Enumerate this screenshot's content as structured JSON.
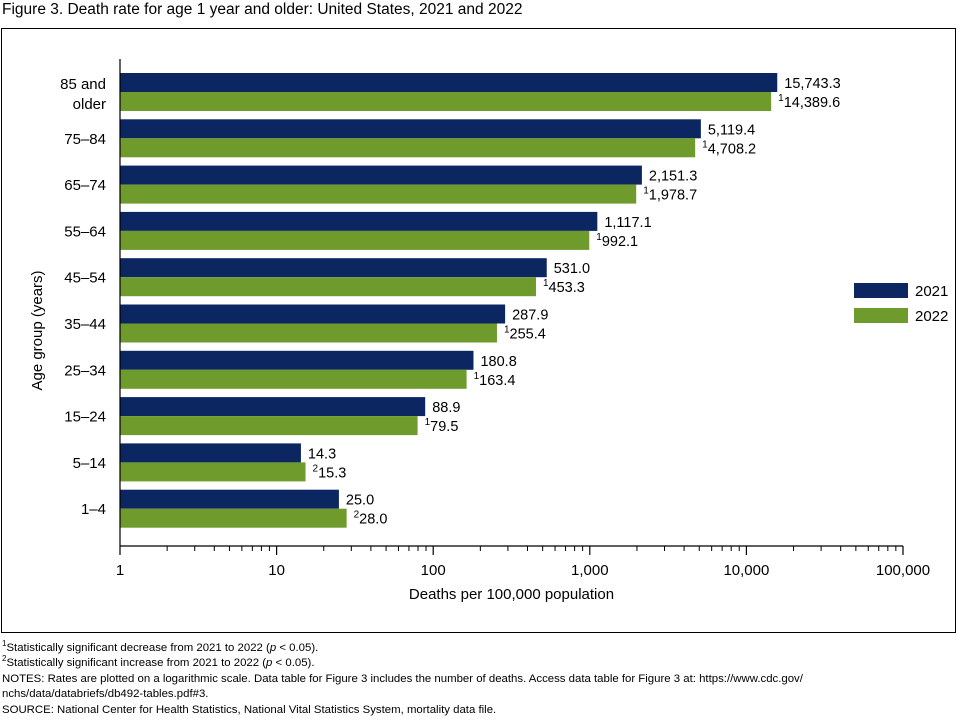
{
  "title": "Figure 3. Death rate for age 1 year and older: United States, 2021 and 2022",
  "chart_data": {
    "type": "bar",
    "orientation": "horizontal",
    "x_scale": "log",
    "xlim": [
      1,
      100000
    ],
    "xlabel": "Deaths per 100,000 population",
    "ylabel": "Age group (years)",
    "x_ticks": [
      "1",
      "10",
      "100",
      "1,000",
      "10,000",
      "100,000"
    ],
    "categories": [
      "85 and older",
      "75–84",
      "65–74",
      "55–64",
      "45–54",
      "35–44",
      "25–34",
      "15–24",
      "5–14",
      "1–4"
    ],
    "series": [
      {
        "name": "2021",
        "color": "#0b2660",
        "values": [
          15743.3,
          5119.4,
          2151.3,
          1117.1,
          531.0,
          287.9,
          180.8,
          88.9,
          14.3,
          25.0
        ],
        "labels": [
          "15,743.3",
          "5,119.4",
          "2,151.3",
          "1,117.1",
          "531.0",
          "287.9",
          "180.8",
          "88.9",
          "14.3",
          "25.0"
        ],
        "markers": [
          "",
          "",
          "",
          "",
          "",
          "",
          "",
          "",
          "",
          ""
        ]
      },
      {
        "name": "2022",
        "color": "#6f9b2d",
        "values": [
          14389.6,
          4708.2,
          1978.7,
          992.1,
          453.3,
          255.4,
          163.4,
          79.5,
          15.3,
          28.0
        ],
        "labels": [
          "14,389.6",
          "4,708.2",
          "1,978.7",
          "992.1",
          "453.3",
          "255.4",
          "163.4",
          "79.5",
          "15.3",
          "28.0"
        ],
        "markers": [
          "1",
          "1",
          "1",
          "1",
          "1",
          "1",
          "1",
          "1",
          "2",
          "2"
        ]
      }
    ],
    "legend_position": "right",
    "grid": false
  },
  "footnotes": {
    "fn1": {
      "mark": "1",
      "before": "Statistically significant decrease from 2021 to 2022 (",
      "p": "p",
      "after": " < 0.05)."
    },
    "fn2": {
      "mark": "2",
      "before": "Statistically significant increase from 2021 to 2022 (",
      "p": "p",
      "after": " < 0.05)."
    },
    "notes_line1": "NOTES: Rates are plotted on a logarithmic scale. Data table for Figure 3 includes the number of deaths. Access data table for Figure 3 at: https://www.cdc.gov/",
    "notes_line2": "nchs/data/databriefs/db492-tables.pdf#3.",
    "source": "SOURCE: National Center for Health Statistics, National Vital Statistics System, mortality data file."
  }
}
